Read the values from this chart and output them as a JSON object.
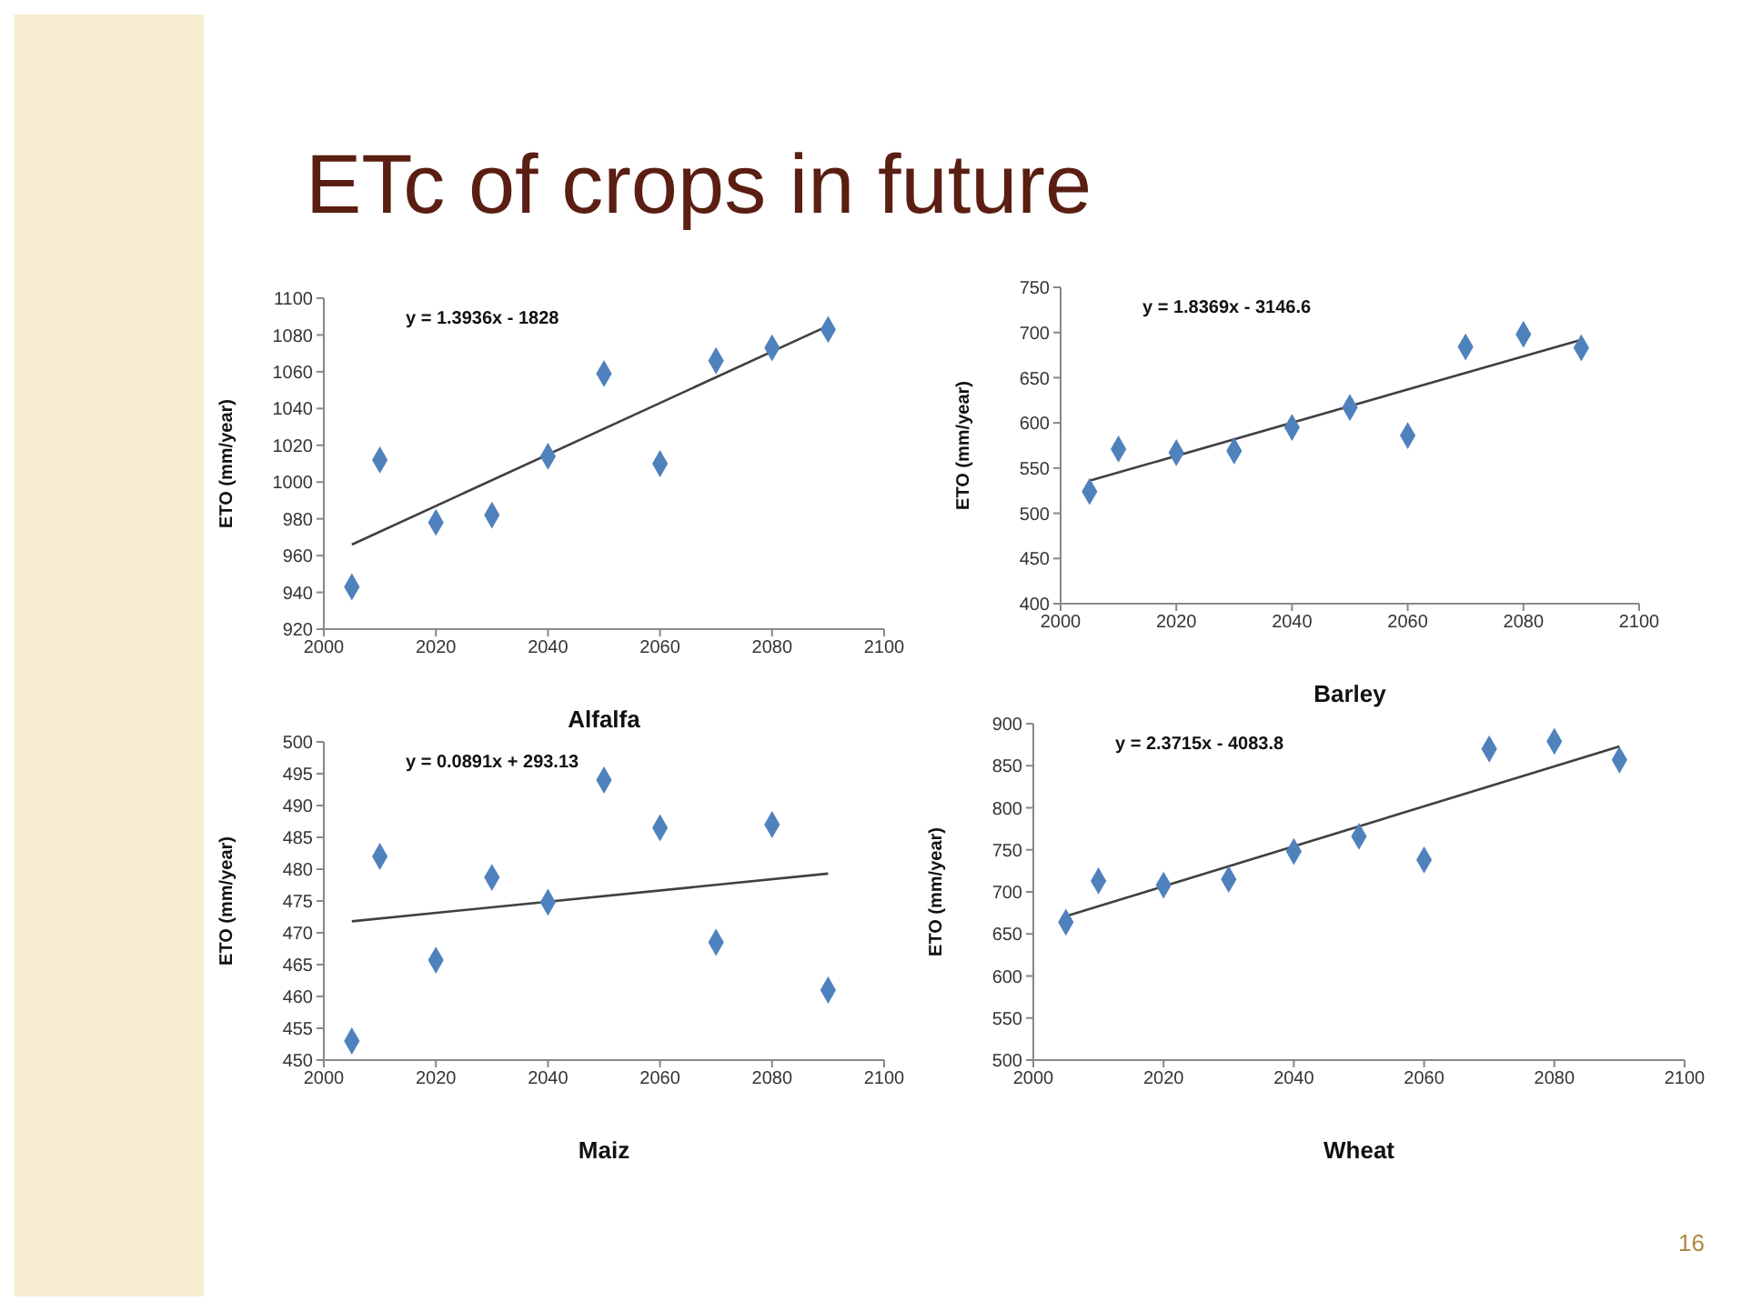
{
  "chart_data": [
    {
      "type": "scatter",
      "title": "ETc of crops in future",
      "xlabel": "Alfalfa",
      "ylabel": "ETO (mm/year)",
      "annotations": [
        "y = 1.3936x - 1828"
      ],
      "xlim": [
        2000,
        2100
      ],
      "xticks": [
        2000,
        2020,
        2040,
        2060,
        2080,
        2100
      ],
      "ylim": [
        920,
        1100
      ],
      "yticks": [
        920,
        940,
        960,
        980,
        1000,
        1020,
        1040,
        1060,
        1080,
        1100
      ],
      "grid": false,
      "legend": false,
      "marker": "diamond",
      "series": [
        {
          "type": "scatter",
          "color": "#4f81bd",
          "x": [
            2005,
            2010,
            2020,
            2030,
            2040,
            2050,
            2060,
            2070,
            2080,
            2090
          ],
          "values": [
            943,
            1012,
            978,
            982,
            1014,
            1059,
            1010,
            1066,
            1073,
            1083
          ]
        },
        {
          "type": "line",
          "color": "#404040",
          "marker": "none",
          "x": [
            2005,
            2090
          ],
          "values": [
            966,
            1085
          ]
        }
      ]
    },
    {
      "type": "scatter",
      "xlabel": "Barley",
      "ylabel": "ETO (mm/year)",
      "annotations": [
        "y = 1.8369x - 3146.6"
      ],
      "xlim": [
        2000,
        2100
      ],
      "xticks": [
        2000,
        2020,
        2040,
        2060,
        2080,
        2100
      ],
      "ylim": [
        400,
        750
      ],
      "yticks": [
        400,
        450,
        500,
        550,
        600,
        650,
        700,
        750
      ],
      "grid": false,
      "legend": false,
      "marker": "diamond",
      "series": [
        {
          "type": "scatter",
          "color": "#4f81bd",
          "x": [
            2005,
            2010,
            2020,
            2030,
            2040,
            2050,
            2060,
            2070,
            2080,
            2090
          ],
          "values": [
            524,
            571,
            567,
            569,
            595,
            617,
            586,
            684,
            698,
            683
          ]
        },
        {
          "type": "line",
          "color": "#404040",
          "marker": "none",
          "x": [
            2005,
            2090
          ],
          "values": [
            536,
            692
          ]
        }
      ]
    },
    {
      "type": "scatter",
      "xlabel": "Maiz",
      "ylabel": "ETO (mm/year)",
      "annotations": [
        "y = 0.0891x + 293.13"
      ],
      "xlim": [
        2000,
        2100
      ],
      "xticks": [
        2000,
        2020,
        2040,
        2060,
        2080,
        2100
      ],
      "ylim": [
        450,
        500
      ],
      "yticks": [
        450,
        455,
        460,
        465,
        470,
        475,
        480,
        485,
        490,
        495,
        500
      ],
      "grid": false,
      "legend": false,
      "marker": "diamond",
      "series": [
        {
          "type": "scatter",
          "color": "#4f81bd",
          "x": [
            2005,
            2010,
            2020,
            2030,
            2040,
            2050,
            2060,
            2070,
            2080,
            2090
          ],
          "values": [
            453,
            482,
            465.7,
            478.7,
            474.8,
            494,
            486.5,
            468.5,
            487,
            461
          ]
        },
        {
          "type": "line",
          "color": "#404040",
          "marker": "none",
          "x": [
            2005,
            2090
          ],
          "values": [
            471.8,
            479.3
          ]
        }
      ]
    },
    {
      "type": "scatter",
      "xlabel": "Wheat",
      "ylabel": "ETO (mm/year)",
      "annotations": [
        "y = 2.3715x - 4083.8",
        "16"
      ],
      "xlim": [
        2000,
        2100
      ],
      "xticks": [
        2000,
        2020,
        2040,
        2060,
        2080,
        2100
      ],
      "ylim": [
        500,
        900
      ],
      "yticks": [
        500,
        550,
        600,
        650,
        700,
        750,
        800,
        850,
        900
      ],
      "grid": false,
      "legend": false,
      "marker": "diamond",
      "series": [
        {
          "type": "scatter",
          "color": "#4f81bd",
          "x": [
            2005,
            2010,
            2020,
            2030,
            2040,
            2050,
            2060,
            2070,
            2080,
            2090
          ],
          "values": [
            664,
            713,
            708,
            715,
            748,
            766,
            738,
            870,
            879,
            857
          ]
        },
        {
          "type": "line",
          "color": "#404040",
          "marker": "none",
          "x": [
            2005,
            2090
          ],
          "values": [
            671,
            873
          ]
        }
      ]
    }
  ]
}
